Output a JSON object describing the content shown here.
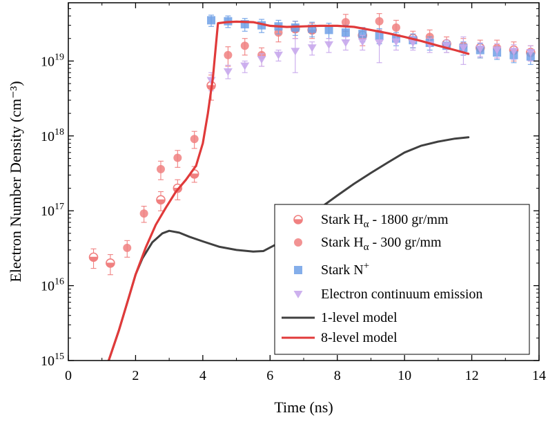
{
  "chart_data": {
    "type": "scatter",
    "xlabel": "Time (ns)",
    "ylabel": "Electron Number Density (cm⁻³)",
    "xlim": [
      0,
      14
    ],
    "ylim": [
      1000000000000000.0,
      6e+19
    ],
    "yscale": "log",
    "x_ticks": [
      "0",
      "2",
      "4",
      "6",
      "8",
      "10",
      "12",
      "14"
    ],
    "y_ticks": [
      {
        "base": "10",
        "exp": "15"
      },
      {
        "base": "10",
        "exp": "16"
      },
      {
        "base": "10",
        "exp": "17"
      },
      {
        "base": "10",
        "exp": "18"
      },
      {
        "base": "10",
        "exp": "19"
      }
    ],
    "legend_position": "bottom-right",
    "series": [
      {
        "name": "Stark Hα - 1800 gr/mm",
        "legend": {
          "main": "Stark H",
          "sub": "α",
          "rest": " - 1800 gr/mm"
        },
        "marker": "half-circle",
        "color": "#f08080",
        "points": [
          {
            "x": 0.75,
            "y": 2.4e+16,
            "lo": 1.7e+16,
            "hi": 3.1e+16
          },
          {
            "x": 1.25,
            "y": 2e+16,
            "lo": 1.4e+16,
            "hi": 2.6e+16
          },
          {
            "x": 2.75,
            "y": 1.4e+17,
            "lo": 1e+17,
            "hi": 1.8e+17
          },
          {
            "x": 3.25,
            "y": 2e+17,
            "lo": 1.4e+17,
            "hi": 2.6e+17
          },
          {
            "x": 3.75,
            "y": 3.1e+17,
            "lo": 2.4e+17,
            "hi": 3.9e+17
          },
          {
            "x": 4.25,
            "y": 4.7e+18,
            "lo": 3e+18,
            "hi": 6.5e+18
          },
          {
            "x": 6.75,
            "y": 2.7e+19,
            "lo": 2e+19,
            "hi": 3.4e+19
          },
          {
            "x": 7.25,
            "y": 2.6e+19,
            "lo": 2e+19,
            "hi": 3.2e+19
          },
          {
            "x": 8.75,
            "y": 2.2e+19,
            "lo": 1.6e+19,
            "hi": 2.8e+19
          },
          {
            "x": 10.25,
            "y": 2e+19,
            "lo": 1.5e+19,
            "hi": 2.5e+19
          },
          {
            "x": 11.25,
            "y": 1.7e+19,
            "lo": 1.3e+19,
            "hi": 2.1e+19
          },
          {
            "x": 12.25,
            "y": 1.5e+19,
            "lo": 1.1e+19,
            "hi": 1.9e+19
          },
          {
            "x": 13.25,
            "y": 1.4e+19,
            "lo": 1e+19,
            "hi": 1.8e+19
          },
          {
            "x": 13.75,
            "y": 1.3e+19,
            "lo": 1e+19,
            "hi": 1.6e+19
          }
        ]
      },
      {
        "name": "Stark Hα - 300 gr/mm",
        "legend": {
          "main": "Stark H",
          "sub": "α",
          "rest": " - 300 gr/mm"
        },
        "marker": "circle",
        "color": "#f08080",
        "points": [
          {
            "x": 1.75,
            "y": 3.2e+16,
            "lo": 2.4e+16,
            "hi": 4e+16
          },
          {
            "x": 2.25,
            "y": 9.2e+16,
            "lo": 7e+16,
            "hi": 1.15e+17
          },
          {
            "x": 2.75,
            "y": 3.6e+17,
            "lo": 2.6e+17,
            "hi": 4.6e+17
          },
          {
            "x": 3.25,
            "y": 5.1e+17,
            "lo": 3.8e+17,
            "hi": 6.4e+17
          },
          {
            "x": 3.75,
            "y": 9.1e+17,
            "lo": 6.8e+17,
            "hi": 1.15e+18
          },
          {
            "x": 4.75,
            "y": 1.2e+19,
            "lo": 8.5e+18,
            "hi": 1.55e+19
          },
          {
            "x": 5.25,
            "y": 1.6e+19,
            "lo": 1.2e+19,
            "hi": 2e+19
          },
          {
            "x": 5.75,
            "y": 1.2e+19,
            "lo": 8.5e+18,
            "hi": 1.5e+19
          },
          {
            "x": 6.25,
            "y": 2.4e+19,
            "lo": 1.8e+19,
            "hi": 3e+19
          },
          {
            "x": 8.25,
            "y": 3.3e+19,
            "lo": 2.5e+19,
            "hi": 4.2e+19
          },
          {
            "x": 9.25,
            "y": 3.4e+19,
            "lo": 2.6e+19,
            "hi": 4.3e+19
          },
          {
            "x": 9.75,
            "y": 2.8e+19,
            "lo": 2.1e+19,
            "hi": 3.5e+19
          },
          {
            "x": 10.75,
            "y": 2.1e+19,
            "lo": 1.6e+19,
            "hi": 2.6e+19
          },
          {
            "x": 11.75,
            "y": 1.6e+19,
            "lo": 1.2e+19,
            "hi": 2e+19
          },
          {
            "x": 12.75,
            "y": 1.5e+19,
            "lo": 1.1e+19,
            "hi": 1.9e+19
          }
        ]
      },
      {
        "name": "Stark N⁺",
        "legend": {
          "main": "Stark N",
          "sup": "+",
          "rest": ""
        },
        "marker": "square",
        "color": "#6fa0e6",
        "points": [
          {
            "x": 4.25,
            "y": 3.5e+19,
            "lo": 2.9e+19,
            "hi": 4.1e+19
          },
          {
            "x": 4.75,
            "y": 3.4e+19,
            "lo": 2.8e+19,
            "hi": 4e+19
          },
          {
            "x": 5.25,
            "y": 3.1e+19,
            "lo": 2.5e+19,
            "hi": 3.7e+19
          },
          {
            "x": 5.75,
            "y": 3e+19,
            "lo": 2.4e+19,
            "hi": 3.6e+19
          },
          {
            "x": 6.25,
            "y": 2.9e+19,
            "lo": 2.3e+19,
            "hi": 3.5e+19
          },
          {
            "x": 6.75,
            "y": 2.8e+19,
            "lo": 2.2e+19,
            "hi": 3.4e+19
          },
          {
            "x": 7.25,
            "y": 2.7e+19,
            "lo": 2.1e+19,
            "hi": 3.3e+19
          },
          {
            "x": 7.75,
            "y": 2.6e+19,
            "lo": 2e+19,
            "hi": 3.2e+19
          },
          {
            "x": 8.25,
            "y": 2.4e+19,
            "lo": 1.9e+19,
            "hi": 3e+19
          },
          {
            "x": 8.75,
            "y": 2.3e+19,
            "lo": 1.8e+19,
            "hi": 2.8e+19
          },
          {
            "x": 9.25,
            "y": 2.2e+19,
            "lo": 1.7e+19,
            "hi": 2.7e+19
          },
          {
            "x": 9.75,
            "y": 2e+19,
            "lo": 1.6e+19,
            "hi": 2.4e+19
          },
          {
            "x": 10.25,
            "y": 1.9e+19,
            "lo": 1.5e+19,
            "hi": 2.3e+19
          },
          {
            "x": 10.75,
            "y": 1.75e+19,
            "lo": 1.4e+19,
            "hi": 2.1e+19
          },
          {
            "x": 11.25,
            "y": 1.6e+19,
            "lo": 1.3e+19,
            "hi": 1.9e+19
          },
          {
            "x": 11.75,
            "y": 1.5e+19,
            "lo": 1.2e+19,
            "hi": 1.8e+19
          },
          {
            "x": 12.25,
            "y": 1.4e+19,
            "lo": 1.1e+19,
            "hi": 1.7e+19
          },
          {
            "x": 12.75,
            "y": 1.3e+19,
            "lo": 1.05e+19,
            "hi": 1.55e+19
          },
          {
            "x": 13.25,
            "y": 1.2e+19,
            "lo": 9.5e+18,
            "hi": 1.45e+19
          },
          {
            "x": 13.75,
            "y": 1.15e+19,
            "lo": 9e+18,
            "hi": 1.4e+19
          }
        ]
      },
      {
        "name": "Electron continuum emission",
        "legend": {
          "main": "Electron continuum emission",
          "rest": ""
        },
        "marker": "triangle-down",
        "color": "#c8a8ec",
        "points": [
          {
            "x": 4.25,
            "y": 5.5e+18,
            "lo": 4e+18,
            "hi": 7e+18
          },
          {
            "x": 4.75,
            "y": 7.2e+18,
            "lo": 5.8e+18,
            "hi": 8.8e+18
          },
          {
            "x": 5.25,
            "y": 8.6e+18,
            "lo": 7e+18,
            "hi": 1e+19
          },
          {
            "x": 5.75,
            "y": 1.05e+19,
            "lo": 8.5e+18,
            "hi": 1.25e+19
          },
          {
            "x": 6.25,
            "y": 1.2e+19,
            "lo": 1e+19,
            "hi": 1.4e+19
          },
          {
            "x": 6.75,
            "y": 1.35e+19,
            "lo": 7e+18,
            "hi": 2e+19
          },
          {
            "x": 7.25,
            "y": 1.5e+19,
            "lo": 1.2e+19,
            "hi": 1.8e+19
          },
          {
            "x": 7.75,
            "y": 1.65e+19,
            "lo": 1.3e+19,
            "hi": 2e+19
          },
          {
            "x": 8.25,
            "y": 1.75e+19,
            "lo": 1.4e+19,
            "hi": 2.1e+19
          },
          {
            "x": 8.75,
            "y": 1.8e+19,
            "lo": 1.4e+19,
            "hi": 2.2e+19
          },
          {
            "x": 9.25,
            "y": 1.75e+19,
            "lo": 9.5e+18,
            "hi": 2.55e+19
          },
          {
            "x": 9.75,
            "y": 1.8e+19,
            "lo": 1.4e+19,
            "hi": 2.2e+19
          },
          {
            "x": 10.25,
            "y": 1.75e+19,
            "lo": 1.4e+19,
            "hi": 2.1e+19
          },
          {
            "x": 10.75,
            "y": 1.65e+19,
            "lo": 1.3e+19,
            "hi": 2e+19
          },
          {
            "x": 11.25,
            "y": 1.6e+19,
            "lo": 1.3e+19,
            "hi": 1.9e+19
          },
          {
            "x": 11.75,
            "y": 1.5e+19,
            "lo": 9e+18,
            "hi": 2.1e+19
          },
          {
            "x": 12.25,
            "y": 1.45e+19,
            "lo": 1.15e+19,
            "hi": 1.75e+19
          },
          {
            "x": 12.75,
            "y": 1.4e+19,
            "lo": 1.1e+19,
            "hi": 1.7e+19
          },
          {
            "x": 13.25,
            "y": 1.35e+19,
            "lo": 1.05e+19,
            "hi": 1.65e+19
          },
          {
            "x": 13.75,
            "y": 1.3e+19,
            "lo": 1e+19,
            "hi": 1.6e+19
          }
        ]
      },
      {
        "name": "1-level model",
        "legend": {
          "main": "1-level model",
          "rest": ""
        },
        "marker": "line",
        "color": "#404040",
        "x": [
          1.2,
          1.5,
          1.8,
          2.0,
          2.2,
          2.5,
          2.8,
          3.0,
          3.3,
          3.6,
          4.0,
          4.5,
          5.0,
          5.5,
          5.8,
          6.2,
          6.6,
          7.0,
          7.5,
          8.0,
          8.5,
          9.0,
          9.5,
          10.0,
          10.5,
          11.0,
          11.5,
          11.9
        ],
        "values": [
          1000000000000000.0,
          2500000000000000.0,
          7000000000000000.0,
          1.4e+16,
          2.3e+16,
          3.8e+16,
          5e+16,
          5.4e+16,
          5.1e+16,
          4.5e+16,
          3.9e+16,
          3.3e+16,
          3e+16,
          2.85e+16,
          2.9e+16,
          3.6e+16,
          5.2e+16,
          7.5e+16,
          1.1e+17,
          1.6e+17,
          2.3e+17,
          3.2e+17,
          4.4e+17,
          6e+17,
          7.4e+17,
          8.4e+17,
          9.2e+17,
          9.6e+17
        ]
      },
      {
        "name": "8-level model",
        "legend": {
          "main": "8-level model",
          "rest": ""
        },
        "marker": "line",
        "color": "#e03a3a",
        "x": [
          1.2,
          1.5,
          1.8,
          2.0,
          2.3,
          2.6,
          2.9,
          3.2,
          3.5,
          3.8,
          4.0,
          4.15,
          4.3,
          4.45,
          4.7,
          5.0,
          5.5,
          6.0,
          6.5,
          7.0,
          7.5,
          8.0,
          8.5,
          9.0,
          9.5,
          10.0,
          10.5,
          11.0,
          11.5,
          11.9
        ],
        "values": [
          1000000000000000.0,
          2500000000000000.0,
          7000000000000000.0,
          1.4e+16,
          3.2e+16,
          6.5e+16,
          1.1e+17,
          1.8e+17,
          2.6e+17,
          4e+17,
          8e+17,
          2e+18,
          6e+18,
          3.2e+19,
          3.3e+19,
          3.35e+19,
          3.3e+19,
          2.95e+19,
          2.85e+19,
          2.9e+19,
          2.95e+19,
          2.95e+19,
          2.85e+19,
          2.6e+19,
          2.35e+19,
          2.1e+19,
          1.85e+19,
          1.6e+19,
          1.4e+19,
          1.25e+19
        ]
      }
    ]
  }
}
